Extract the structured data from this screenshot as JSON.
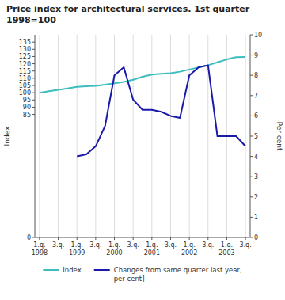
{
  "chart_data": {
    "type": "line",
    "title": "Price index for architectural services. 1st quarter",
    "subtitle": "1998=100",
    "ylabel": "Index",
    "y2label": "Per cent",
    "categories": [
      "1.q.\n1998",
      null,
      "3.q.",
      null,
      "1.q.\n1999",
      null,
      "3.q.",
      null,
      "1.q.\n2000",
      null,
      "3.q.",
      null,
      "1.q.\n2001",
      null,
      "3.q.",
      null,
      "1.q.\n2002",
      null,
      "3.q.",
      null,
      "1.q.\n2003",
      null,
      "3.q."
    ],
    "series": [
      {
        "name": "Index",
        "color": "#3dbdbd",
        "values": [
          100,
          101,
          102,
          103,
          104,
          104.5,
          104.7,
          105.5,
          106.5,
          107.5,
          109,
          111,
          112.5,
          113,
          113.5,
          114.5,
          116,
          117.5,
          119,
          121,
          123,
          124.5,
          124.7
        ]
      },
      {
        "name": "Changes from same quarter last year,\nper cent]",
        "color": "#1a1aaa",
        "axis": "y2",
        "values": [
          null,
          null,
          null,
          null,
          4.0,
          4.1,
          4.5,
          5.5,
          8.0,
          8.4,
          6.8,
          6.3,
          6.3,
          6.2,
          6.0,
          5.9,
          8.0,
          8.4,
          8.5,
          5.0,
          5.0,
          5.0,
          4.5
        ]
      }
    ],
    "ylim": [
      0,
      140
    ],
    "yticks": [
      0,
      85,
      90,
      95,
      100,
      105,
      110,
      115,
      120,
      125,
      130,
      135
    ],
    "y2lim": [
      0,
      10
    ],
    "y2ticks": [
      0,
      1,
      2,
      3,
      4,
      5,
      6,
      7,
      8,
      9,
      10
    ],
    "grid": "x",
    "legend": "bottom"
  }
}
